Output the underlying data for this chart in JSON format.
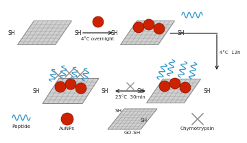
{
  "bg_color": "#ffffff",
  "go_color": "#d0d0d0",
  "go_edge_color": "#808080",
  "aunp_color": "#cc2200",
  "aunp_edge": "#881100",
  "peptide_color": "#3399cc",
  "arrow_color": "#222222",
  "text_color": "#222222",
  "sh_color": "#222222",
  "chymo_color": "#909090",
  "step1_label": "4°C overnight",
  "step2_label": "4°C  12h",
  "step3_label": "25°C  30min",
  "legend_peptide": "Peptide",
  "legend_aunps": "AuNPs",
  "legend_gosh": "GO-SH",
  "legend_chymo": "Chymotrypsin",
  "fig_width": 3.31,
  "fig_height": 1.89
}
